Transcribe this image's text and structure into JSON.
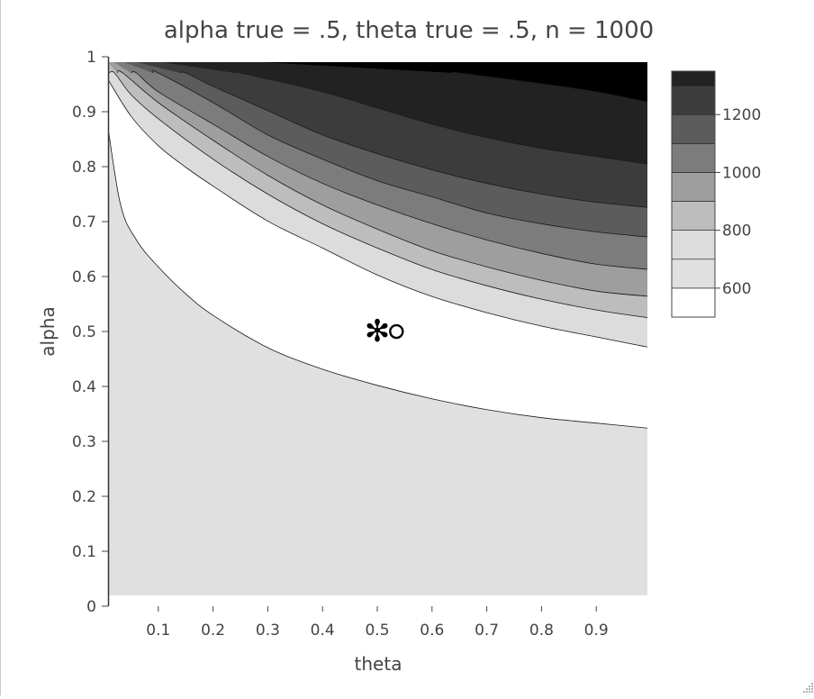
{
  "chart_data": {
    "type": "contour",
    "title": "alpha true = .5, theta true = .5, n = 1000",
    "xlabel": "theta",
    "ylabel": "alpha",
    "xlim": [
      0,
      1
    ],
    "ylim": [
      0,
      1
    ],
    "x_ticks": [
      {
        "value": 0.1,
        "label": "0.1"
      },
      {
        "value": 0.2,
        "label": "0.2"
      },
      {
        "value": 0.3,
        "label": "0.3"
      },
      {
        "value": 0.4,
        "label": "0.4"
      },
      {
        "value": 0.5,
        "label": "0.5"
      },
      {
        "value": 0.6,
        "label": "0.6"
      },
      {
        "value": 0.7,
        "label": "0.7"
      },
      {
        "value": 0.8,
        "label": "0.8"
      },
      {
        "value": 0.9,
        "label": "0.9"
      }
    ],
    "y_ticks": [
      {
        "value": 0,
        "label": "0"
      },
      {
        "value": 0.1,
        "label": "0.1"
      },
      {
        "value": 0.2,
        "label": "0.2"
      },
      {
        "value": 0.3,
        "label": "0.3"
      },
      {
        "value": 0.4,
        "label": "0.4"
      },
      {
        "value": 0.5,
        "label": "0.5"
      },
      {
        "value": 0.6,
        "label": "0.6"
      },
      {
        "value": 0.7,
        "label": "0.7"
      },
      {
        "value": 0.8,
        "label": "0.8"
      },
      {
        "value": 0.9,
        "label": "0.9"
      },
      {
        "value": 1,
        "label": "1"
      }
    ],
    "contour_levels": [
      500,
      600,
      700,
      800,
      900,
      1000,
      1100,
      1200,
      1300,
      1400
    ],
    "bands": [
      {
        "min": 600,
        "max": 700,
        "color": "#e0e0e0"
      },
      {
        "min": 500,
        "max": 600,
        "color": "#ffffff"
      },
      {
        "min": 700,
        "max": 800,
        "color": "#dcdcdc"
      },
      {
        "min": 800,
        "max": 900,
        "color": "#bdbdbd"
      },
      {
        "min": 900,
        "max": 1000,
        "color": "#9e9e9e"
      },
      {
        "min": 1000,
        "max": 1100,
        "color": "#7c7c7c"
      },
      {
        "min": 1100,
        "max": 1200,
        "color": "#5c5c5c"
      },
      {
        "min": 1200,
        "max": 1300,
        "color": "#3c3c3c"
      },
      {
        "min": 1300,
        "max": 1400,
        "color": "#222222"
      },
      {
        "min": 1400,
        "max": 1500,
        "color": "#000000"
      }
    ],
    "contours": [
      {
        "level": 600,
        "points": [
          [
            0.0,
            0.94
          ],
          [
            0.03,
            0.75
          ],
          [
            0.06,
            0.68
          ],
          [
            0.1,
            0.63
          ],
          [
            0.15,
            0.58
          ],
          [
            0.2,
            0.54
          ],
          [
            0.3,
            0.48
          ],
          [
            0.4,
            0.44
          ],
          [
            0.5,
            0.41
          ],
          [
            0.6,
            0.385
          ],
          [
            0.7,
            0.365
          ],
          [
            0.8,
            0.35
          ],
          [
            0.9,
            0.34
          ],
          [
            1.0,
            0.33
          ]
        ]
      },
      {
        "level": 700,
        "points": [
          [
            0.0,
            0.99
          ],
          [
            0.05,
            0.91
          ],
          [
            0.1,
            0.855
          ],
          [
            0.15,
            0.815
          ],
          [
            0.2,
            0.78
          ],
          [
            0.3,
            0.715
          ],
          [
            0.4,
            0.665
          ],
          [
            0.5,
            0.615
          ],
          [
            0.6,
            0.575
          ],
          [
            0.7,
            0.545
          ],
          [
            0.8,
            0.52
          ],
          [
            0.9,
            0.5
          ],
          [
            1.0,
            0.48
          ]
        ]
      },
      {
        "level": 800,
        "points": [
          [
            0.02,
            0.99
          ],
          [
            0.05,
            0.95
          ],
          [
            0.1,
            0.905
          ],
          [
            0.2,
            0.83
          ],
          [
            0.3,
            0.765
          ],
          [
            0.4,
            0.71
          ],
          [
            0.5,
            0.665
          ],
          [
            0.6,
            0.625
          ],
          [
            0.7,
            0.595
          ],
          [
            0.8,
            0.57
          ],
          [
            0.9,
            0.55
          ],
          [
            1.0,
            0.535
          ]
        ]
      },
      {
        "level": 900,
        "points": [
          [
            0.035,
            0.99
          ],
          [
            0.1,
            0.935
          ],
          [
            0.2,
            0.865
          ],
          [
            0.3,
            0.8
          ],
          [
            0.4,
            0.745
          ],
          [
            0.5,
            0.7
          ],
          [
            0.6,
            0.66
          ],
          [
            0.7,
            0.63
          ],
          [
            0.8,
            0.605
          ],
          [
            0.9,
            0.585
          ],
          [
            1.0,
            0.575
          ]
        ]
      },
      {
        "level": 1000,
        "points": [
          [
            0.06,
            0.99
          ],
          [
            0.1,
            0.955
          ],
          [
            0.2,
            0.895
          ],
          [
            0.3,
            0.835
          ],
          [
            0.4,
            0.785
          ],
          [
            0.5,
            0.745
          ],
          [
            0.6,
            0.71
          ],
          [
            0.7,
            0.68
          ],
          [
            0.8,
            0.655
          ],
          [
            0.9,
            0.635
          ],
          [
            1.0,
            0.625
          ]
        ]
      },
      {
        "level": 1100,
        "points": [
          [
            0.1,
            0.99
          ],
          [
            0.2,
            0.935
          ],
          [
            0.3,
            0.875
          ],
          [
            0.4,
            0.83
          ],
          [
            0.5,
            0.79
          ],
          [
            0.6,
            0.76
          ],
          [
            0.7,
            0.73
          ],
          [
            0.8,
            0.71
          ],
          [
            0.9,
            0.695
          ],
          [
            1.0,
            0.685
          ]
        ]
      },
      {
        "level": 1200,
        "points": [
          [
            0.15,
            0.99
          ],
          [
            0.2,
            0.965
          ],
          [
            0.3,
            0.92
          ],
          [
            0.4,
            0.875
          ],
          [
            0.5,
            0.84
          ],
          [
            0.6,
            0.81
          ],
          [
            0.7,
            0.785
          ],
          [
            0.8,
            0.765
          ],
          [
            0.9,
            0.75
          ],
          [
            1.0,
            0.74
          ]
        ]
      },
      {
        "level": 1300,
        "points": [
          [
            0.25,
            0.99
          ],
          [
            0.4,
            0.955
          ],
          [
            0.5,
            0.925
          ],
          [
            0.6,
            0.895
          ],
          [
            0.7,
            0.87
          ],
          [
            0.8,
            0.85
          ],
          [
            0.9,
            0.835
          ],
          [
            1.0,
            0.82
          ]
        ]
      },
      {
        "level": 1400,
        "points": [
          [
            0.65,
            0.99
          ],
          [
            0.8,
            0.97
          ],
          [
            0.9,
            0.955
          ],
          [
            1.0,
            0.935
          ]
        ]
      }
    ],
    "markers": [
      {
        "symbol": "asterisk",
        "glyph": "✻",
        "x": 0.5,
        "y": 0.515
      },
      {
        "symbol": "open-circle",
        "x": 0.535,
        "y": 0.51
      }
    ],
    "colorbar": {
      "zmin": 500,
      "zmax": 1350,
      "ticks": [
        {
          "value": 600,
          "label": "600"
        },
        {
          "value": 800,
          "label": "800"
        },
        {
          "value": 1000,
          "label": "1000"
        },
        {
          "value": 1200,
          "label": "1200"
        }
      ]
    },
    "grid": false
  }
}
